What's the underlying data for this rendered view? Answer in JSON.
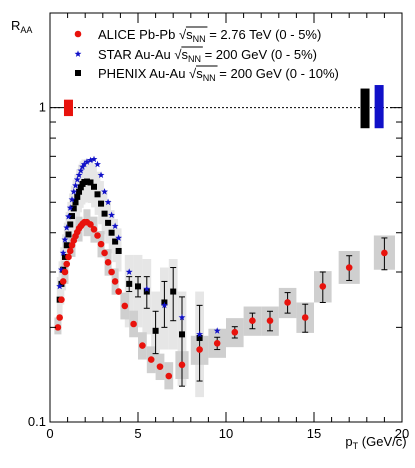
{
  "chart_data": {
    "type": "scatter",
    "xlabel": "p",
    "xlabel_sub": "T",
    "xlabel_unit": " (GeV/c)",
    "ylabel": "R",
    "ylabel_sub": "AA",
    "xlim": [
      0,
      20
    ],
    "ylim": [
      0.1,
      2.0
    ],
    "yscale": "log",
    "x_ticks": [
      0,
      5,
      10,
      15,
      20
    ],
    "y_ticks": [
      0.1,
      1
    ],
    "reference_line_y": 1,
    "legend_position": "top-left",
    "series": [
      {
        "name": "ALICE Pb-Pb",
        "legend_pre": "ALICE Pb-Pb ",
        "legend_s": "s",
        "legend_sub": "NN",
        "legend_post": " = 2.76 TeV (0 - 5%)",
        "marker": "circle",
        "color": "#e8120c",
        "norm_box": {
          "x": 1.05,
          "y_lo": 0.94,
          "y_hi": 1.06,
          "color": "#e8120c"
        },
        "points": [
          {
            "x": 0.45,
            "y": 0.2
          },
          {
            "x": 0.55,
            "y": 0.215
          },
          {
            "x": 0.65,
            "y": 0.245
          },
          {
            "x": 0.75,
            "y": 0.28
          },
          {
            "x": 0.85,
            "y": 0.3
          },
          {
            "x": 0.95,
            "y": 0.318
          },
          {
            "x": 1.05,
            "y": 0.335
          },
          {
            "x": 1.15,
            "y": 0.35
          },
          {
            "x": 1.25,
            "y": 0.365
          },
          {
            "x": 1.35,
            "y": 0.378
          },
          {
            "x": 1.45,
            "y": 0.39
          },
          {
            "x": 1.55,
            "y": 0.402
          },
          {
            "x": 1.65,
            "y": 0.413
          },
          {
            "x": 1.75,
            "y": 0.42
          },
          {
            "x": 1.85,
            "y": 0.427
          },
          {
            "x": 1.95,
            "y": 0.432
          },
          {
            "x": 2.1,
            "y": 0.432
          },
          {
            "x": 2.3,
            "y": 0.425
          },
          {
            "x": 2.5,
            "y": 0.41
          },
          {
            "x": 2.7,
            "y": 0.392
          },
          {
            "x": 2.9,
            "y": 0.368
          },
          {
            "x": 3.1,
            "y": 0.345
          },
          {
            "x": 3.3,
            "y": 0.322
          },
          {
            "x": 3.5,
            "y": 0.3
          },
          {
            "x": 3.7,
            "y": 0.28
          },
          {
            "x": 3.9,
            "y": 0.26
          },
          {
            "x": 4.25,
            "y": 0.234
          },
          {
            "x": 4.75,
            "y": 0.205
          },
          {
            "x": 5.25,
            "y": 0.175
          },
          {
            "x": 5.75,
            "y": 0.158
          },
          {
            "x": 6.25,
            "y": 0.15
          },
          {
            "x": 6.75,
            "y": 0.14
          },
          {
            "x": 7.5,
            "y": 0.152
          },
          {
            "x": 8.5,
            "y": 0.17
          },
          {
            "x": 9.5,
            "y": 0.178,
            "err": 0.008
          },
          {
            "x": 10.5,
            "y": 0.193,
            "err": 0.008
          },
          {
            "x": 11.5,
            "y": 0.21,
            "err": 0.012
          },
          {
            "x": 12.5,
            "y": 0.21,
            "err": 0.015
          },
          {
            "x": 13.5,
            "y": 0.24,
            "err": 0.018
          },
          {
            "x": 14.5,
            "y": 0.215,
            "err": 0.022
          },
          {
            "x": 15.5,
            "y": 0.27,
            "err": 0.03
          },
          {
            "x": 17.0,
            "y": 0.31,
            "err": 0.028
          },
          {
            "x": 19.0,
            "y": 0.345,
            "err": 0.04
          }
        ]
      },
      {
        "name": "STAR Au-Au",
        "legend_pre": "STAR Au-Au ",
        "legend_s": "s",
        "legend_sub": "NN",
        "legend_post": " = 200 GeV (0 - 5%)",
        "marker": "star",
        "color": "#1010c8",
        "norm_box": {
          "x": 18.7,
          "y_lo": 0.86,
          "y_hi": 1.18,
          "color": "#1010c8"
        },
        "points": [
          {
            "x": 0.55,
            "y": 0.27
          },
          {
            "x": 0.65,
            "y": 0.305
          },
          {
            "x": 0.75,
            "y": 0.345
          },
          {
            "x": 0.85,
            "y": 0.38
          },
          {
            "x": 0.95,
            "y": 0.415
          },
          {
            "x": 1.05,
            "y": 0.45
          },
          {
            "x": 1.15,
            "y": 0.48
          },
          {
            "x": 1.25,
            "y": 0.51
          },
          {
            "x": 1.35,
            "y": 0.54
          },
          {
            "x": 1.45,
            "y": 0.565
          },
          {
            "x": 1.55,
            "y": 0.59
          },
          {
            "x": 1.65,
            "y": 0.61
          },
          {
            "x": 1.75,
            "y": 0.63
          },
          {
            "x": 1.85,
            "y": 0.648
          },
          {
            "x": 1.95,
            "y": 0.66
          },
          {
            "x": 2.1,
            "y": 0.672
          },
          {
            "x": 2.3,
            "y": 0.68
          },
          {
            "x": 2.5,
            "y": 0.685
          },
          {
            "x": 2.7,
            "y": 0.66
          },
          {
            "x": 2.9,
            "y": 0.61
          },
          {
            "x": 3.1,
            "y": 0.54
          },
          {
            "x": 3.3,
            "y": 0.5
          },
          {
            "x": 3.5,
            "y": 0.455
          },
          {
            "x": 3.7,
            "y": 0.42
          },
          {
            "x": 3.9,
            "y": 0.385
          },
          {
            "x": 4.5,
            "y": 0.3
          },
          {
            "x": 5.5,
            "y": 0.265
          },
          {
            "x": 6.5,
            "y": 0.235
          },
          {
            "x": 7.5,
            "y": 0.215
          },
          {
            "x": 8.5,
            "y": 0.19
          },
          {
            "x": 9.5,
            "y": 0.195
          }
        ]
      },
      {
        "name": "PHENIX Au-Au",
        "legend_pre": "PHENIX Au-Au ",
        "legend_s": "s",
        "legend_sub": "NN",
        "legend_post": " = 200 GeV (0 - 10%)",
        "marker": "square",
        "color": "#000000",
        "norm_box": {
          "x": 17.9,
          "y_lo": 0.86,
          "y_hi": 1.15,
          "color": "#000000"
        },
        "points": [
          {
            "x": 0.55,
            "y": 0.245
          },
          {
            "x": 0.65,
            "y": 0.275
          },
          {
            "x": 0.75,
            "y": 0.305
          },
          {
            "x": 0.85,
            "y": 0.335
          },
          {
            "x": 0.95,
            "y": 0.365
          },
          {
            "x": 1.05,
            "y": 0.395
          },
          {
            "x": 1.15,
            "y": 0.425
          },
          {
            "x": 1.25,
            "y": 0.452
          },
          {
            "x": 1.35,
            "y": 0.478
          },
          {
            "x": 1.45,
            "y": 0.5
          },
          {
            "x": 1.55,
            "y": 0.52
          },
          {
            "x": 1.65,
            "y": 0.54
          },
          {
            "x": 1.75,
            "y": 0.558
          },
          {
            "x": 1.85,
            "y": 0.572
          },
          {
            "x": 1.95,
            "y": 0.58
          },
          {
            "x": 2.1,
            "y": 0.582
          },
          {
            "x": 2.3,
            "y": 0.578
          },
          {
            "x": 2.5,
            "y": 0.56
          },
          {
            "x": 2.7,
            "y": 0.53
          },
          {
            "x": 2.9,
            "y": 0.495
          },
          {
            "x": 3.1,
            "y": 0.46
          },
          {
            "x": 3.3,
            "y": 0.43
          },
          {
            "x": 3.5,
            "y": 0.4
          },
          {
            "x": 3.7,
            "y": 0.375
          },
          {
            "x": 3.9,
            "y": 0.35
          },
          {
            "x": 4.5,
            "y": 0.275,
            "err": 0.015
          },
          {
            "x": 5.0,
            "y": 0.27,
            "err": 0.02
          },
          {
            "x": 5.5,
            "y": 0.26,
            "err": 0.03
          },
          {
            "x": 6.0,
            "y": 0.195,
            "err": 0.03
          },
          {
            "x": 6.5,
            "y": 0.24,
            "err": 0.04
          },
          {
            "x": 7.0,
            "y": 0.26,
            "err": 0.05
          },
          {
            "x": 7.5,
            "y": 0.19,
            "err": 0.06
          },
          {
            "x": 8.5,
            "y": 0.185,
            "err": 0.05
          }
        ]
      }
    ],
    "systematic_bands": [
      {
        "series": "PHENIX Au-Au",
        "color": "#e6e6e6",
        "x_lo": 0.45,
        "x_hi": 4.0,
        "width": 0.1,
        "y_lo_frac": 0.86,
        "y_hi_frac": 1.18,
        "extra_boxes": [
          {
            "x": 4.5,
            "lo": 0.2,
            "hi": 0.34
          },
          {
            "x": 5.0,
            "lo": 0.2,
            "hi": 0.34
          },
          {
            "x": 5.5,
            "lo": 0.19,
            "hi": 0.33
          },
          {
            "x": 6.0,
            "lo": 0.15,
            "hi": 0.26
          },
          {
            "x": 6.5,
            "lo": 0.17,
            "hi": 0.31
          },
          {
            "x": 7.0,
            "lo": 0.17,
            "hi": 0.33
          },
          {
            "x": 7.5,
            "lo": 0.13,
            "hi": 0.26
          },
          {
            "x": 8.5,
            "lo": 0.12,
            "hi": 0.26
          }
        ]
      }
    ],
    "alice_sys_boxes": [
      {
        "x": 0.45,
        "lo": 0.19,
        "hi": 0.215
      },
      {
        "x": 0.85,
        "lo": 0.275,
        "hi": 0.325
      },
      {
        "x": 1.25,
        "lo": 0.335,
        "hi": 0.395
      },
      {
        "x": 1.65,
        "lo": 0.375,
        "hi": 0.45
      },
      {
        "x": 2.1,
        "lo": 0.39,
        "hi": 0.475
      },
      {
        "x": 2.5,
        "lo": 0.372,
        "hi": 0.45
      },
      {
        "x": 2.9,
        "lo": 0.334,
        "hi": 0.405
      },
      {
        "x": 3.3,
        "lo": 0.292,
        "hi": 0.355
      },
      {
        "x": 3.7,
        "lo": 0.254,
        "hi": 0.308
      },
      {
        "x": 4.25,
        "lo": 0.212,
        "hi": 0.258
      },
      {
        "x": 4.75,
        "lo": 0.186,
        "hi": 0.226
      },
      {
        "x": 5.25,
        "lo": 0.158,
        "hi": 0.193
      },
      {
        "x": 5.75,
        "lo": 0.143,
        "hi": 0.174
      },
      {
        "x": 6.25,
        "lo": 0.136,
        "hi": 0.165
      },
      {
        "x": 6.75,
        "lo": 0.127,
        "hi": 0.155
      },
      {
        "x": 7.5,
        "lo": 0.137,
        "hi": 0.168
      },
      {
        "x": 8.5,
        "lo": 0.152,
        "hi": 0.188
      },
      {
        "x": 9.5,
        "lo": 0.16,
        "hi": 0.198
      },
      {
        "x": 10.5,
        "lo": 0.173,
        "hi": 0.214
      },
      {
        "x": 11.5,
        "lo": 0.188,
        "hi": 0.233
      },
      {
        "x": 12.5,
        "lo": 0.188,
        "hi": 0.233
      },
      {
        "x": 13.5,
        "lo": 0.214,
        "hi": 0.267
      },
      {
        "x": 14.5,
        "lo": 0.192,
        "hi": 0.24
      },
      {
        "x": 15.5,
        "lo": 0.24,
        "hi": 0.302
      },
      {
        "x": 17.0,
        "lo": 0.275,
        "hi": 0.35
      },
      {
        "x": 19.0,
        "lo": 0.305,
        "hi": 0.392
      }
    ]
  }
}
